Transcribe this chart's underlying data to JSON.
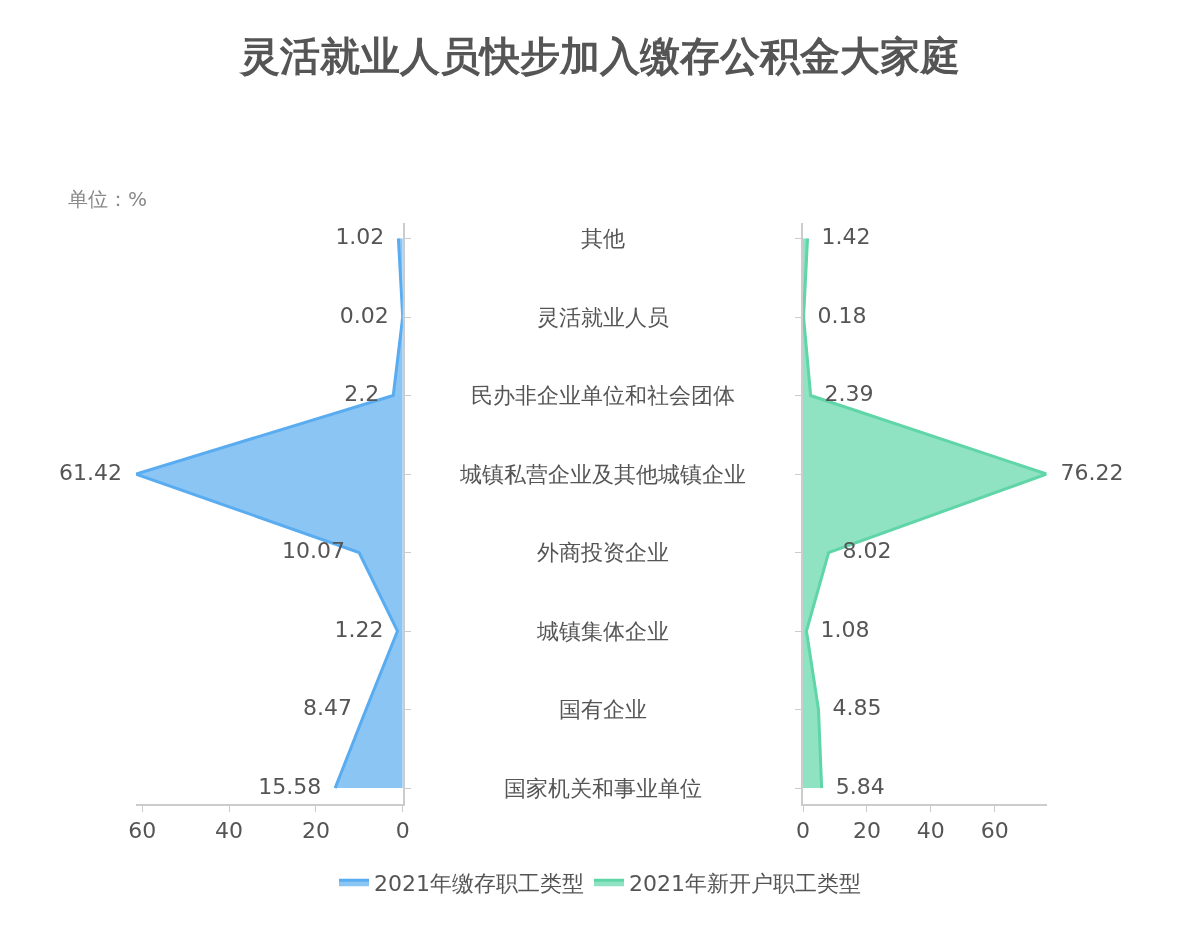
{
  "chart_data": [
    {
      "type": "area",
      "orientation": "horizontal",
      "title": "灵活就业人员快步加入缴存公积金大家庭",
      "annotations": [
        "单位：%"
      ],
      "categories": [
        "其他",
        "灵活就业人员",
        "民办非企业单位和社会团体",
        "城镇私营企业及其他城镇企业",
        "外商投资企业",
        "城镇集体企业",
        "国有企业",
        "国家机关和事业单位"
      ],
      "series": [
        {
          "name": "2021年缴存职工类型",
          "color": "#5aacf0",
          "values": [
            1.02,
            0.02,
            2.2,
            61.42,
            10.07,
            1.22,
            8.47,
            15.58
          ]
        }
      ],
      "xlim": [
        61.42,
        0
      ],
      "xticks": [
        60,
        40,
        20,
        0
      ],
      "data_labels": true,
      "legend": "bottom"
    },
    {
      "type": "area",
      "orientation": "horizontal",
      "tick_labels": "x",
      "categories": [
        "其他",
        "灵活就业人员",
        "民办非企业单位和社会团体",
        "城镇私营企业及其他城镇企业",
        "外商投资企业",
        "城镇集体企业",
        "国有企业",
        "国家机关和事业单位"
      ],
      "series": [
        {
          "name": "2021年新开户职工类型",
          "color": "#5fd5a8",
          "values": [
            1.42,
            0.18,
            2.39,
            76.22,
            8.02,
            1.08,
            4.85,
            5.84
          ]
        }
      ],
      "xlim": [
        0,
        76.22
      ],
      "xticks": [
        0,
        20,
        40,
        60
      ],
      "data_labels": true,
      "legend": "bottom"
    }
  ]
}
